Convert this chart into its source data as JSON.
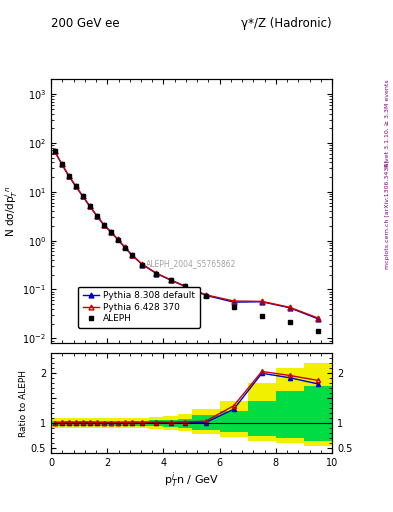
{
  "title_left": "200 GeV ee",
  "title_right": "γ*/Z (Hadronic)",
  "xlabel": "p$_T^i$n / GeV",
  "ylabel_main": "N dσ/dp$_T^i$$^n$",
  "ylabel_ratio": "Ratio to ALEPH",
  "right_label_top": "Rivet 3.1.10, ≥ 3.3M events",
  "right_label_bot": "mcplots.cern.ch [arXiv:1306.3436]",
  "watermark": "ALEPH_2004_S5765862",
  "xlim": [
    0,
    10
  ],
  "ylim_main": [
    0.008,
    2000
  ],
  "ylim_ratio": [
    0.4,
    2.4
  ],
  "aleph_x": [
    0.125,
    0.375,
    0.625,
    0.875,
    1.125,
    1.375,
    1.625,
    1.875,
    2.125,
    2.375,
    2.625,
    2.875,
    3.25,
    3.75,
    4.25,
    4.75,
    5.5,
    6.5,
    7.5,
    8.5,
    9.5
  ],
  "aleph_y": [
    68.0,
    37.0,
    21.0,
    13.0,
    8.0,
    5.0,
    3.2,
    2.1,
    1.5,
    1.05,
    0.72,
    0.5,
    0.32,
    0.21,
    0.155,
    0.115,
    0.075,
    0.043,
    0.028,
    0.022,
    0.014
  ],
  "pythia6_x": [
    0.125,
    0.375,
    0.625,
    0.875,
    1.125,
    1.375,
    1.625,
    1.875,
    2.125,
    2.375,
    2.625,
    2.875,
    3.25,
    3.75,
    4.25,
    4.75,
    5.5,
    6.5,
    7.5,
    8.5,
    9.5
  ],
  "pythia6_y": [
    68.5,
    37.5,
    21.5,
    13.2,
    8.2,
    5.1,
    3.25,
    2.12,
    1.52,
    1.06,
    0.73,
    0.51,
    0.325,
    0.215,
    0.158,
    0.118,
    0.078,
    0.058,
    0.057,
    0.043,
    0.026
  ],
  "pythia8_x": [
    0.125,
    0.375,
    0.625,
    0.875,
    1.125,
    1.375,
    1.625,
    1.875,
    2.125,
    2.375,
    2.625,
    2.875,
    3.25,
    3.75,
    4.25,
    4.75,
    5.5,
    6.5,
    7.5,
    8.5,
    9.5
  ],
  "pythia8_y": [
    68.0,
    37.2,
    21.2,
    13.0,
    8.1,
    5.05,
    3.22,
    2.1,
    1.5,
    1.055,
    0.725,
    0.505,
    0.322,
    0.212,
    0.156,
    0.116,
    0.076,
    0.055,
    0.056,
    0.042,
    0.025
  ],
  "ratio6_x": [
    0.125,
    0.375,
    0.625,
    0.875,
    1.125,
    1.375,
    1.625,
    1.875,
    2.125,
    2.375,
    2.625,
    2.875,
    3.25,
    3.75,
    4.25,
    4.75,
    5.5,
    6.5,
    7.5,
    8.5,
    9.5
  ],
  "ratio6_y": [
    1.007,
    1.014,
    1.024,
    1.015,
    1.025,
    1.02,
    1.016,
    1.01,
    1.013,
    1.01,
    1.014,
    1.02,
    1.016,
    1.024,
    1.019,
    1.026,
    1.04,
    1.349,
    2.036,
    1.955,
    1.857
  ],
  "ratio8_x": [
    0.125,
    0.375,
    0.625,
    0.875,
    1.125,
    1.375,
    1.625,
    1.875,
    2.125,
    2.375,
    2.625,
    2.875,
    3.25,
    3.75,
    4.25,
    4.75,
    5.5,
    6.5,
    7.5,
    8.5,
    9.5
  ],
  "ratio8_y": [
    1.0,
    1.005,
    1.01,
    1.0,
    1.013,
    1.01,
    1.006,
    1.0,
    1.0,
    1.005,
    1.007,
    1.01,
    1.006,
    1.01,
    1.006,
    1.009,
    1.013,
    1.279,
    2.0,
    1.909,
    1.786
  ],
  "band_edges": [
    0.0,
    0.25,
    0.5,
    0.75,
    1.0,
    1.25,
    1.5,
    1.75,
    2.0,
    2.25,
    2.5,
    2.75,
    3.0,
    3.5,
    4.0,
    4.5,
    5.0,
    6.0,
    7.0,
    8.0,
    9.0,
    10.0
  ],
  "band_lo_yellow": [
    0.9,
    0.9,
    0.9,
    0.9,
    0.9,
    0.9,
    0.9,
    0.9,
    0.9,
    0.9,
    0.9,
    0.9,
    0.9,
    0.88,
    0.86,
    0.84,
    0.78,
    0.72,
    0.65,
    0.6,
    0.55,
    0.55
  ],
  "band_hi_yellow": [
    1.1,
    1.1,
    1.1,
    1.1,
    1.1,
    1.1,
    1.1,
    1.1,
    1.1,
    1.1,
    1.1,
    1.1,
    1.1,
    1.12,
    1.14,
    1.18,
    1.28,
    1.45,
    1.8,
    2.1,
    2.2,
    2.2
  ],
  "band_lo_green": [
    0.95,
    0.95,
    0.95,
    0.95,
    0.95,
    0.95,
    0.95,
    0.95,
    0.95,
    0.95,
    0.95,
    0.95,
    0.95,
    0.94,
    0.93,
    0.91,
    0.87,
    0.83,
    0.75,
    0.7,
    0.65,
    0.65
  ],
  "band_hi_green": [
    1.05,
    1.05,
    1.05,
    1.05,
    1.05,
    1.05,
    1.05,
    1.05,
    1.05,
    1.05,
    1.05,
    1.05,
    1.05,
    1.06,
    1.07,
    1.09,
    1.16,
    1.25,
    1.45,
    1.65,
    1.75,
    1.75
  ],
  "color_aleph": "#000000",
  "color_pythia6": "#cc0000",
  "color_pythia8": "#0000cc",
  "legend_entries": [
    "ALEPH",
    "Pythia 6.428 370",
    "Pythia 8.308 default"
  ]
}
